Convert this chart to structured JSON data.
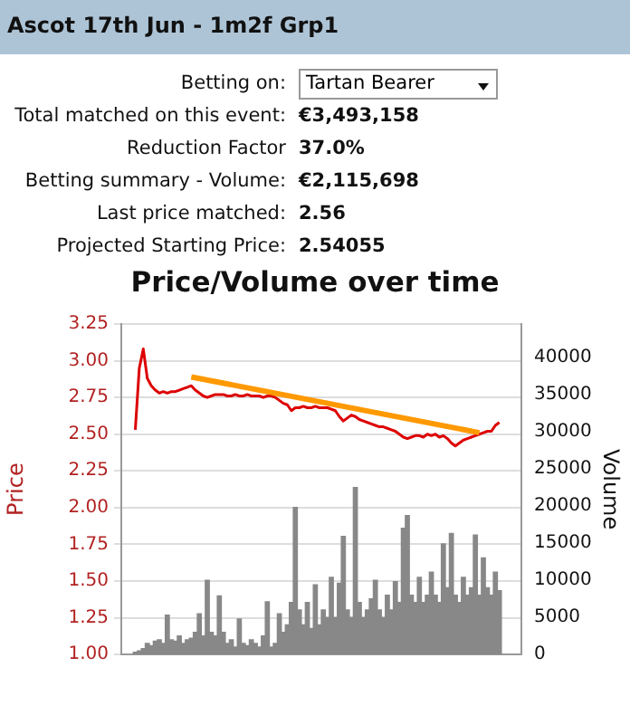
{
  "chart_data": {
    "type": "line",
    "title": "Price/Volume over time",
    "ylabel": "Price",
    "y2label": "Volume",
    "annotations": [
      "Ascot 17th Jun - 1m2f Grp1",
      "Betting on:",
      "Tartan Bearer",
      "Total matched on this event:",
      "€3,493,158",
      "Reduction Factor",
      "37.0%",
      "Betting summary - Volume:",
      "€2,115,698",
      "Last price matched:",
      "2.56",
      "Projected Starting Price:",
      "2.54055"
    ],
    "categories": [
      null,
      null,
      null,
      null,
      null,
      null,
      null,
      null,
      null,
      null,
      null,
      null,
      null,
      null,
      null,
      null,
      null,
      null,
      null,
      null,
      null,
      null,
      null,
      null,
      null,
      null,
      null,
      null,
      null,
      null,
      null,
      null,
      null,
      null,
      null,
      null,
      null,
      null,
      null,
      null,
      null,
      null,
      null,
      null,
      null,
      null,
      null,
      null,
      null,
      null,
      null,
      null,
      null,
      null,
      null,
      null,
      null,
      null,
      null,
      null,
      null,
      null,
      null,
      null,
      null,
      null,
      null,
      null,
      null,
      null,
      null,
      null,
      null,
      null,
      null,
      null,
      null,
      null,
      null,
      null,
      null,
      null,
      null,
      null,
      null,
      null,
      null,
      null,
      null,
      null,
      null,
      null,
      null,
      null,
      null,
      null,
      null,
      null,
      null,
      null
    ],
    "series": [
      {
        "color": "#ff9900",
        "values": [
          null,
          null,
          null,
          null,
          null,
          null,
          null,
          null,
          null,
          null,
          null,
          null,
          null,
          null,
          null,
          null,
          null,
          2.89,
          null,
          null,
          null,
          null,
          null,
          null,
          null,
          null,
          null,
          null,
          null,
          null,
          null,
          null,
          null,
          null,
          null,
          null,
          null,
          null,
          null,
          null,
          null,
          null,
          null,
          null,
          null,
          null,
          null,
          null,
          null,
          null,
          null,
          null,
          null,
          null,
          null,
          null,
          null,
          null,
          null,
          null,
          null,
          null,
          null,
          null,
          null,
          null,
          null,
          null,
          null,
          null,
          null,
          null,
          null,
          null,
          null,
          null,
          null,
          null,
          null,
          null,
          null,
          null,
          null,
          null,
          null,
          null,
          null,
          null,
          null,
          2.51,
          null,
          null,
          null,
          null,
          null,
          null,
          null,
          null,
          null,
          null
        ]
      },
      {
        "color": "#dd0000",
        "values": [
          null,
          null,
          null,
          2.53,
          2.95,
          3.08,
          2.88,
          2.83,
          2.8,
          2.78,
          2.79,
          2.78,
          2.79,
          2.79,
          2.8,
          2.81,
          2.82,
          2.83,
          2.8,
          2.78,
          2.76,
          2.75,
          2.76,
          2.77,
          2.77,
          2.77,
          2.76,
          2.76,
          2.77,
          2.76,
          2.76,
          2.77,
          2.76,
          2.76,
          2.76,
          2.75,
          2.76,
          2.76,
          2.75,
          2.73,
          2.71,
          2.7,
          2.66,
          2.68,
          2.68,
          2.69,
          2.68,
          2.68,
          2.69,
          2.68,
          2.68,
          2.68,
          2.67,
          2.66,
          2.62,
          2.59,
          2.61,
          2.63,
          2.62,
          2.6,
          2.59,
          2.58,
          2.57,
          2.56,
          2.55,
          2.55,
          2.54,
          2.53,
          2.52,
          2.5,
          2.48,
          2.47,
          2.48,
          2.49,
          2.49,
          2.48,
          2.5,
          2.49,
          2.5,
          2.48,
          2.49,
          2.47,
          2.44,
          2.42,
          2.44,
          2.46,
          2.47,
          2.48,
          2.49,
          2.5,
          2.51,
          2.52,
          2.52,
          2.56,
          2.58,
          null,
          null,
          null,
          null,
          null
        ]
      },
      {
        "type": "bar",
        "axis": "y2",
        "color": "#888888",
        "values": [
          null,
          null,
          null,
          300,
          500,
          800,
          1500,
          1200,
          1800,
          2000,
          1500,
          5300,
          2000,
          1800,
          2500,
          1500,
          2000,
          2200,
          3000,
          5500,
          2500,
          10000,
          3000,
          2500,
          7900,
          3000,
          1500,
          2000,
          1000,
          4800,
          1500,
          1200,
          2000,
          1500,
          1000,
          2500,
          7100,
          1000,
          1500,
          5500,
          3000,
          4000,
          7000,
          19800,
          6000,
          4000,
          7000,
          3500,
          9400,
          4000,
          6000,
          5000,
          10400,
          5000,
          9600,
          15900,
          6000,
          5000,
          22500,
          7000,
          5000,
          6000,
          7500,
          10000,
          6000,
          5000,
          8000,
          6000,
          9800,
          7000,
          17000,
          18700,
          8000,
          7000,
          10400,
          7000,
          8000,
          11100,
          8000,
          7000,
          14900,
          9000,
          16300,
          8000,
          7000,
          10400,
          8000,
          9000,
          16100,
          8000,
          13000,
          9000,
          8000,
          11100,
          8600,
          null,
          null,
          null,
          null,
          null
        ]
      }
    ],
    "ylim": [
      1,
      3.25
    ],
    "yticks": [
      {
        "value": 1,
        "label": "1.00"
      },
      1.25,
      {
        "value": 1.5,
        "label": "1.50"
      },
      1.75,
      {
        "value": 2,
        "label": "2.00"
      },
      2.25,
      {
        "value": 2.5,
        "label": "2.50"
      },
      2.75,
      {
        "value": 3,
        "label": "3.00"
      },
      3.25
    ],
    "y2lim": [
      0,
      44500
    ],
    "y2ticks": [
      0,
      5000,
      10000,
      15000,
      20000,
      25000,
      30000,
      35000,
      40000
    ],
    "grid": "y",
    "marker": "none",
    "legend": false
  }
}
